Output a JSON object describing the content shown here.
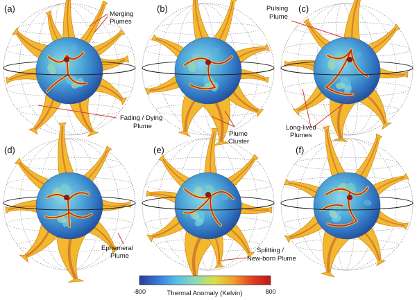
{
  "panels": [
    {
      "label": "(a)"
    },
    {
      "label": "(b)"
    },
    {
      "label": "(c)"
    },
    {
      "label": "(d)"
    },
    {
      "label": "(e)"
    },
    {
      "label": "(f)"
    }
  ],
  "annotations": {
    "merging": [
      "Merging",
      "Plumes"
    ],
    "fading": [
      "Fading / Dying",
      "Plume"
    ],
    "cluster": [
      "Plume",
      "Cluster"
    ],
    "pulsing": [
      "Pulsing",
      "Plume"
    ],
    "longlived": [
      "Long-lived",
      "Plumes"
    ],
    "ephemeral": [
      "Ephemeral",
      "Plume"
    ],
    "splitting": [
      "Splitting /",
      "New-born Plume"
    ]
  },
  "colorbar": {
    "min_label": "-800",
    "max_label": "800",
    "title": "Thermal Anomaly (Kelvin)",
    "stops": [
      "#2b3a9b",
      "#3a78d8",
      "#58c0e8",
      "#8fd9b0",
      "#d8e04a",
      "#f0a030",
      "#e04020",
      "#c01818"
    ]
  },
  "colors": {
    "plume": "#f2b830",
    "plume_edge": "#d88a18",
    "plume_core": "#c0502a",
    "annotation_line": "#d23a2a"
  }
}
